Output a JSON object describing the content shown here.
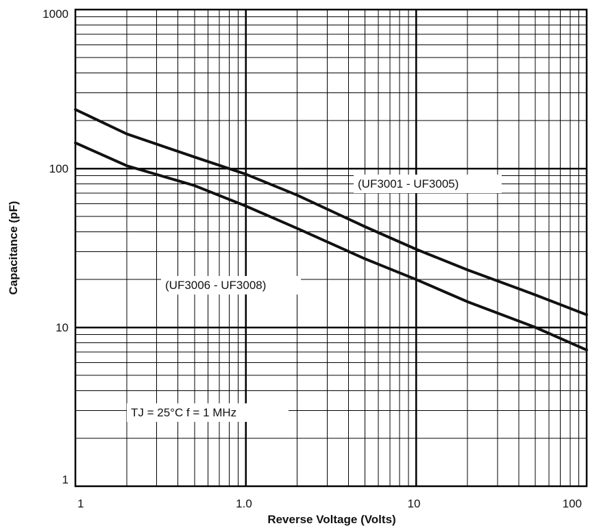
{
  "chart_data": {
    "type": "line",
    "x_scale": "log",
    "y_scale": "log",
    "xlim": [
      0.1,
      100
    ],
    "ylim": [
      1,
      1000
    ],
    "xlabel": "Reverse Voltage (Volts)",
    "ylabel": "Capacitance (pF)",
    "x_tick_labels": [
      "1",
      "1.0",
      "10",
      "100"
    ],
    "y_tick_labels": [
      "1",
      "10",
      "100",
      "1000"
    ],
    "grid": true,
    "series": [
      {
        "name": "(UF3001 - UF3005)",
        "x": [
          0.1,
          0.2,
          0.5,
          1,
          2,
          5,
          10,
          20,
          50,
          100
        ],
        "y": [
          235,
          165,
          118,
          92,
          68,
          43,
          31,
          23,
          16,
          12
        ]
      },
      {
        "name": "(UF3006 - UF3008)",
        "x": [
          0.1,
          0.2,
          0.5,
          1,
          2,
          5,
          10,
          20,
          50,
          100
        ],
        "y": [
          145,
          104,
          78,
          58,
          42,
          27,
          20,
          14.5,
          10,
          7.2
        ]
      }
    ],
    "annotations": [
      "TJ = 25°C  f = 1 MHz"
    ]
  }
}
